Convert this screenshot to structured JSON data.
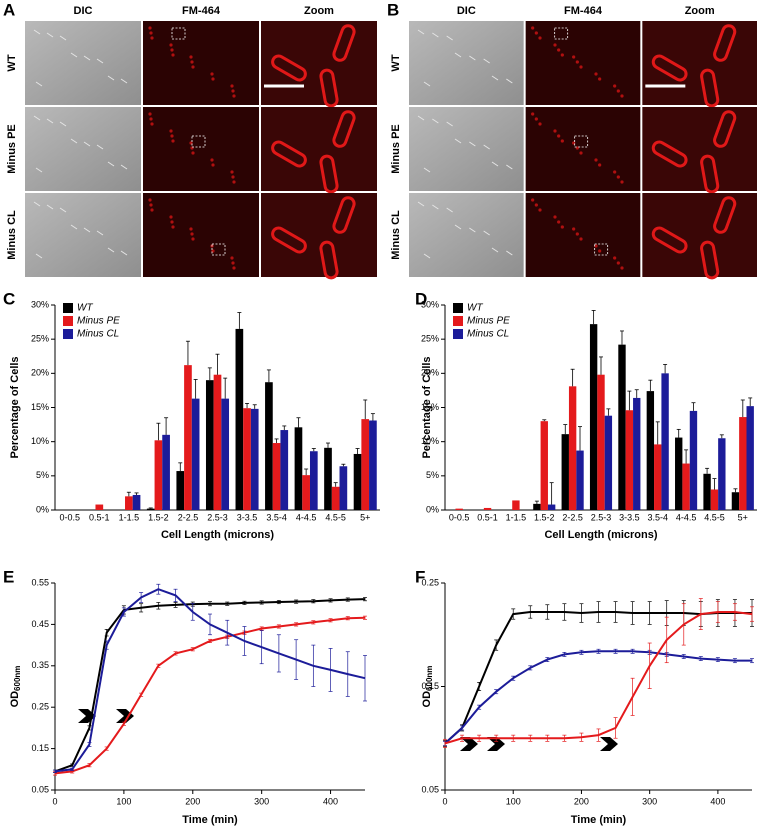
{
  "image_panels": [
    {
      "label": "A",
      "columns": [
        "DIC",
        "FM-464",
        "Zoom"
      ],
      "rows": [
        "WT",
        "Minus PE",
        "Minus CL"
      ]
    },
    {
      "label": "B",
      "columns": [
        "DIC",
        "FM-464",
        "Zoom"
      ],
      "rows": [
        "WT",
        "Minus PE",
        "Minus CL"
      ]
    }
  ],
  "chart_data": [
    {
      "type": "bar",
      "label": "C",
      "x_label": "Cell Length (microns)",
      "y_label": "Percentage of Cells",
      "categories": [
        "0-0.5",
        "0.5-1",
        "1-1.5",
        "1.5-2",
        "2-2.5",
        "2.5-3",
        "3-3.5",
        "3.5-4",
        "4-4.5",
        "4.5-5",
        "5+"
      ],
      "series": [
        {
          "name": "WT",
          "color": "#000000",
          "values": [
            0,
            0,
            0,
            0.2,
            5.7,
            19,
            26.5,
            18.7,
            12.1,
            9.1,
            8.2
          ],
          "errors": [
            0,
            0,
            0,
            0.1,
            1.2,
            1.8,
            2.4,
            1.8,
            1.4,
            0.7,
            0.8
          ]
        },
        {
          "name": "Minus PE",
          "color": "#e41a1c",
          "values": [
            0,
            0.8,
            2,
            10.2,
            21.2,
            19.8,
            14.9,
            9.8,
            5.1,
            3.4,
            13.3
          ],
          "errors": [
            0,
            0,
            0.6,
            2.5,
            3.5,
            3,
            0.7,
            0.6,
            0.9,
            0.6,
            2.8
          ]
        },
        {
          "name": "Minus CL",
          "color": "#1c1c99",
          "values": [
            0,
            0,
            2.2,
            11,
            16.3,
            16.3,
            14.8,
            11.7,
            8.6,
            6.4,
            13.1
          ],
          "errors": [
            0,
            0,
            0.3,
            2.5,
            2.8,
            3,
            0.6,
            0.6,
            0.4,
            0.3,
            1
          ]
        }
      ],
      "ylim": [
        0,
        30
      ],
      "yticks": [
        {
          "value": 0,
          "label": "0%"
        },
        {
          "value": 5,
          "label": "5%"
        },
        {
          "value": 10,
          "label": "10%"
        },
        {
          "value": 15,
          "label": "15%"
        },
        {
          "value": 20,
          "label": "20%"
        },
        {
          "value": 25,
          "label": "25%"
        },
        {
          "value": 30,
          "label": "30%"
        }
      ],
      "legend": "top-left"
    },
    {
      "type": "bar",
      "label": "D",
      "x_label": "Cell Length (microns)",
      "y_label": "Percentage of Cells",
      "categories": [
        "0-0.5",
        "0.5-1",
        "1-1.5",
        "1.5-2",
        "2-2.5",
        "2.5-3",
        "3-3.5",
        "3.5-4",
        "4-4.5",
        "4.5-5",
        "5+"
      ],
      "series": [
        {
          "name": "WT",
          "color": "#000000",
          "values": [
            0,
            0,
            0,
            0.9,
            11.1,
            27.2,
            24.2,
            17.4,
            10.6,
            5.3,
            2.6
          ],
          "errors": [
            0,
            0,
            0,
            0.4,
            1.4,
            2,
            2,
            1.6,
            1.2,
            0.8,
            0.5
          ]
        },
        {
          "name": "Minus PE",
          "color": "#e41a1c",
          "values": [
            0.2,
            0.3,
            1.4,
            13,
            18.1,
            19.8,
            14.6,
            9.6,
            6.8,
            3,
            13.6
          ],
          "errors": [
            0,
            0,
            0,
            0.2,
            2.5,
            2.6,
            2.8,
            3.3,
            2,
            1.6,
            2.5
          ]
        },
        {
          "name": "Minus CL",
          "color": "#1c1c99",
          "values": [
            0,
            0,
            0,
            0.8,
            8.7,
            13.8,
            16.4,
            20,
            14.5,
            10.5,
            15.2
          ],
          "errors": [
            0,
            0,
            0,
            3.2,
            3.5,
            1,
            1.2,
            1.3,
            1.2,
            0.5,
            1.2
          ]
        }
      ],
      "ylim": [
        0,
        30
      ],
      "yticks": [
        {
          "value": 0,
          "label": "0%"
        },
        {
          "value": 5,
          "label": "5%"
        },
        {
          "value": 10,
          "label": "10%"
        },
        {
          "value": 15,
          "label": "15%"
        },
        {
          "value": 20,
          "label": "20%"
        },
        {
          "value": 25,
          "label": "25%"
        },
        {
          "value": 30,
          "label": "30%"
        }
      ],
      "legend": "top-left"
    },
    {
      "type": "line",
      "label": "E",
      "x_label": "Time (min)",
      "y_label": {
        "main": "OD",
        "subscript": "600nm"
      },
      "x": [
        0,
        25,
        50,
        75,
        100,
        125,
        150,
        175,
        200,
        225,
        250,
        275,
        300,
        325,
        350,
        375,
        400,
        425,
        450
      ],
      "series": [
        {
          "color": "#000000",
          "values": [
            0.095,
            0.11,
            0.2,
            0.43,
            0.485,
            0.49,
            0.495,
            0.497,
            0.499,
            0.5,
            0.5,
            0.502,
            0.503,
            0.504,
            0.505,
            0.506,
            0.508,
            0.51,
            0.511
          ],
          "errors": [
            0.003,
            0.003,
            0.005,
            0.008,
            0.01,
            0.01,
            0.008,
            0.006,
            0.005,
            0.005,
            0.004,
            0.004,
            0.004,
            0.004,
            0.004,
            0.004,
            0.004,
            0.004,
            0.004
          ]
        },
        {
          "color": "#e41a1c",
          "values": [
            0.09,
            0.095,
            0.11,
            0.15,
            0.21,
            0.28,
            0.35,
            0.38,
            0.39,
            0.41,
            0.42,
            0.43,
            0.44,
            0.445,
            0.45,
            0.455,
            0.46,
            0.465,
            0.466
          ],
          "errors": [
            0.004,
            0.004,
            0.004,
            0.004,
            0.004,
            0.004,
            0.004,
            0.004,
            0.004,
            0.004,
            0.004,
            0.004,
            0.004,
            0.004,
            0.004,
            0.004,
            0.004,
            0.004,
            0.004
          ]
        },
        {
          "color": "#1c1c99",
          "values": [
            0.095,
            0.1,
            0.16,
            0.4,
            0.48,
            0.515,
            0.535,
            0.52,
            0.48,
            0.45,
            0.43,
            0.41,
            0.395,
            0.38,
            0.365,
            0.35,
            0.34,
            0.33,
            0.32
          ],
          "errors": [
            0.003,
            0.003,
            0.005,
            0.01,
            0.01,
            0.012,
            0.012,
            0.015,
            0.02,
            0.025,
            0.03,
            0.035,
            0.04,
            0.045,
            0.048,
            0.05,
            0.052,
            0.054,
            0.055
          ]
        }
      ],
      "xlim": [
        0,
        450
      ],
      "xticks": [
        0,
        100,
        200,
        300,
        400
      ],
      "ylim": [
        0.05,
        0.55
      ],
      "yticks": [
        0.05,
        0.15,
        0.25,
        0.35,
        0.45,
        0.55
      ]
    },
    {
      "type": "line",
      "label": "F",
      "x_label": "Time (min)",
      "y_label": {
        "main": "OD",
        "subscript": "600nm"
      },
      "x": [
        0,
        25,
        50,
        75,
        100,
        125,
        150,
        175,
        200,
        225,
        250,
        275,
        300,
        325,
        350,
        375,
        400,
        425,
        450
      ],
      "series": [
        {
          "color": "#000000",
          "values": [
            0.095,
            0.11,
            0.15,
            0.19,
            0.22,
            0.222,
            0.222,
            0.222,
            0.221,
            0.222,
            0.222,
            0.221,
            0.221,
            0.221,
            0.221,
            0.22,
            0.221,
            0.221,
            0.221
          ],
          "errors": [
            0.003,
            0.003,
            0.004,
            0.005,
            0.005,
            0.006,
            0.007,
            0.008,
            0.009,
            0.01,
            0.01,
            0.011,
            0.011,
            0.012,
            0.012,
            0.012,
            0.013,
            0.013,
            0.013
          ]
        },
        {
          "color": "#1c1c99",
          "values": [
            0.095,
            0.11,
            0.13,
            0.145,
            0.158,
            0.168,
            0.176,
            0.181,
            0.183,
            0.184,
            0.184,
            0.184,
            0.183,
            0.181,
            0.179,
            0.177,
            0.176,
            0.175,
            0.175
          ],
          "errors": [
            0.002,
            0.002,
            0.002,
            0.002,
            0.002,
            0.002,
            0.002,
            0.002,
            0.002,
            0.002,
            0.002,
            0.002,
            0.002,
            0.002,
            0.002,
            0.002,
            0.002,
            0.002,
            0.002
          ]
        },
        {
          "color": "#e41a1c",
          "values": [
            0.095,
            0.1,
            0.1,
            0.1,
            0.1,
            0.1,
            0.1,
            0.1,
            0.101,
            0.103,
            0.11,
            0.14,
            0.17,
            0.195,
            0.21,
            0.22,
            0.222,
            0.222,
            0.22
          ],
          "errors": [
            0.004,
            0.003,
            0.003,
            0.003,
            0.003,
            0.003,
            0.003,
            0.003,
            0.004,
            0.006,
            0.01,
            0.018,
            0.022,
            0.022,
            0.02,
            0.015,
            0.01,
            0.008,
            0.007
          ]
        }
      ],
      "xlim": [
        0,
        450
      ],
      "xticks": [
        0,
        100,
        200,
        300,
        400
      ],
      "ylim": [
        0.05,
        0.25
      ],
      "yticks": [
        0.05,
        0.15,
        0.25
      ]
    }
  ]
}
